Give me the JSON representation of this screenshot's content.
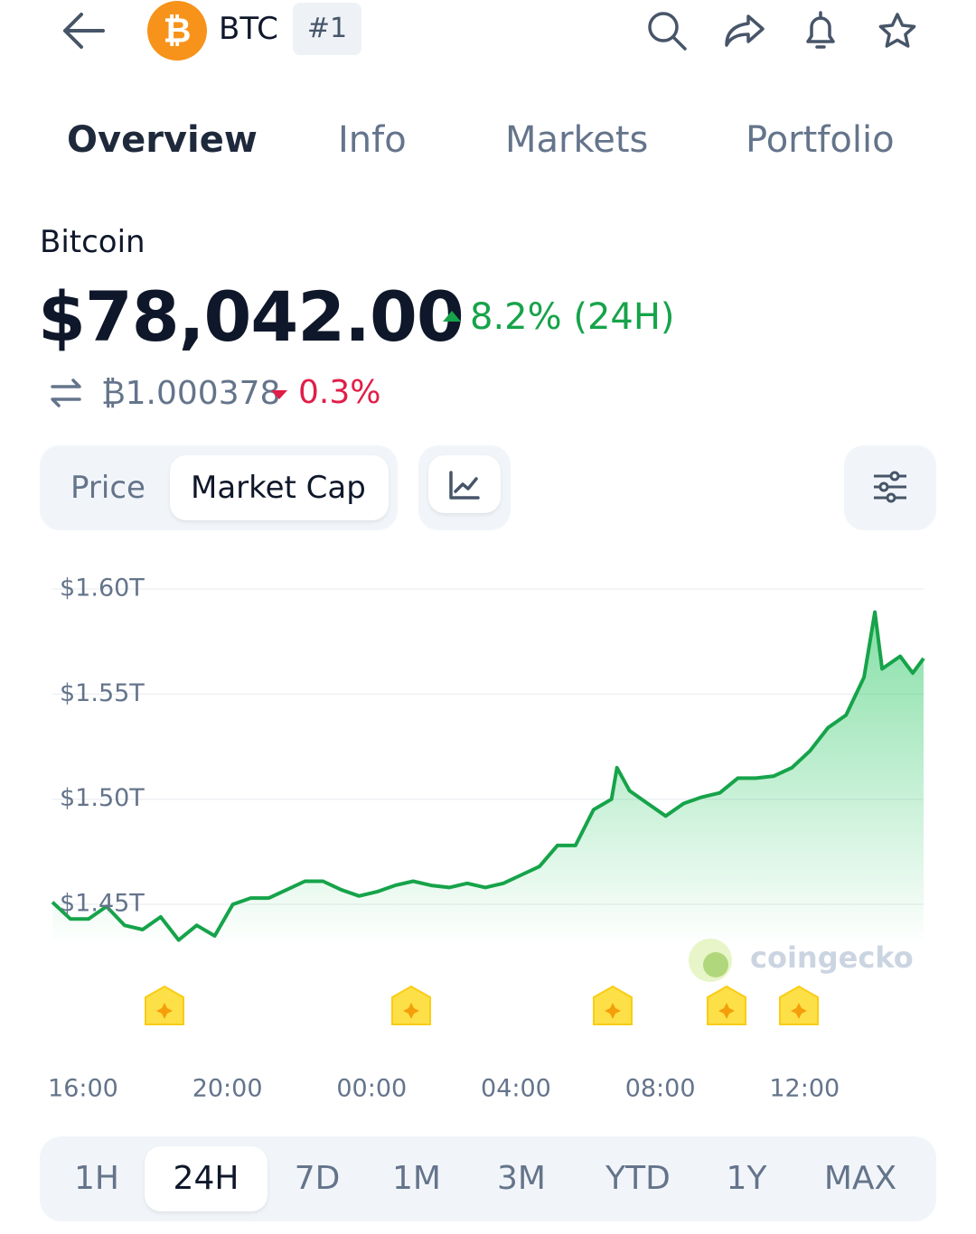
{
  "header": {
    "symbol": "BTC",
    "rank": "#1"
  },
  "tabs": {
    "items": [
      "Overview",
      "Info",
      "Markets",
      "Portfolio"
    ],
    "active": 0
  },
  "coin": {
    "name": "Bitcoin",
    "price": "$78,042.00",
    "change": "8.2% (24H)",
    "btc_price": "₿1.000378",
    "btc_change": "0.3%"
  },
  "toggle": {
    "items": [
      "Price",
      "Market Cap"
    ],
    "active": 1
  },
  "chart_data": {
    "type": "line",
    "color": "#16a34a",
    "watermark": "coingecko",
    "x": [
      15.15,
      15.65,
      16.15,
      16.65,
      17.15,
      17.65,
      18.15,
      18.65,
      19.15,
      19.65,
      20.15,
      20.65,
      21.15,
      21.65,
      22.15,
      22.65,
      23.15,
      23.65,
      24.15,
      24.65,
      25.15,
      25.65,
      26.15,
      26.65,
      27.15,
      27.65,
      28.15,
      28.65,
      29.15,
      29.65,
      30.15,
      30.65,
      30.8,
      31.15,
      31.65,
      32.15,
      32.65,
      33.15,
      33.65,
      34.15,
      34.65,
      35.15,
      35.65,
      36.15,
      36.65,
      37.15,
      37.65,
      37.95,
      38.15,
      38.65,
      39.0,
      39.3
    ],
    "values": [
      1.451,
      1.443,
      1.443,
      1.449,
      1.44,
      1.438,
      1.444,
      1.433,
      1.44,
      1.435,
      1.45,
      1.453,
      1.453,
      1.457,
      1.461,
      1.461,
      1.457,
      1.454,
      1.456,
      1.459,
      1.461,
      1.459,
      1.458,
      1.46,
      1.458,
      1.46,
      1.464,
      1.468,
      1.478,
      1.478,
      1.495,
      1.5,
      1.515,
      1.504,
      1.498,
      1.492,
      1.498,
      1.501,
      1.503,
      1.51,
      1.51,
      1.511,
      1.515,
      1.523,
      1.534,
      1.54,
      1.558,
      1.589,
      1.562,
      1.568,
      1.56,
      1.567
    ],
    "xlim": [
      15.15,
      39.3
    ],
    "xticks": [
      {
        "value": 16,
        "label": "16:00"
      },
      {
        "value": 20,
        "label": "20:00"
      },
      {
        "value": 24,
        "label": "00:00"
      },
      {
        "value": 28,
        "label": "04:00"
      },
      {
        "value": 32,
        "label": "08:00"
      },
      {
        "value": 36,
        "label": "12:00"
      }
    ],
    "ylim": [
      1.43,
      1.6
    ],
    "yticks": [
      {
        "value": 1.45,
        "label": "$1.45T"
      },
      {
        "value": 1.5,
        "label": "$1.50T"
      },
      {
        "value": 1.55,
        "label": "$1.55T"
      },
      {
        "value": 1.6,
        "label": "$1.60T"
      }
    ],
    "grid": true
  },
  "ranges": {
    "items": [
      "1H",
      "24H",
      "7D",
      "1M",
      "3M",
      "YTD",
      "1Y",
      "MAX"
    ],
    "active": 1
  }
}
